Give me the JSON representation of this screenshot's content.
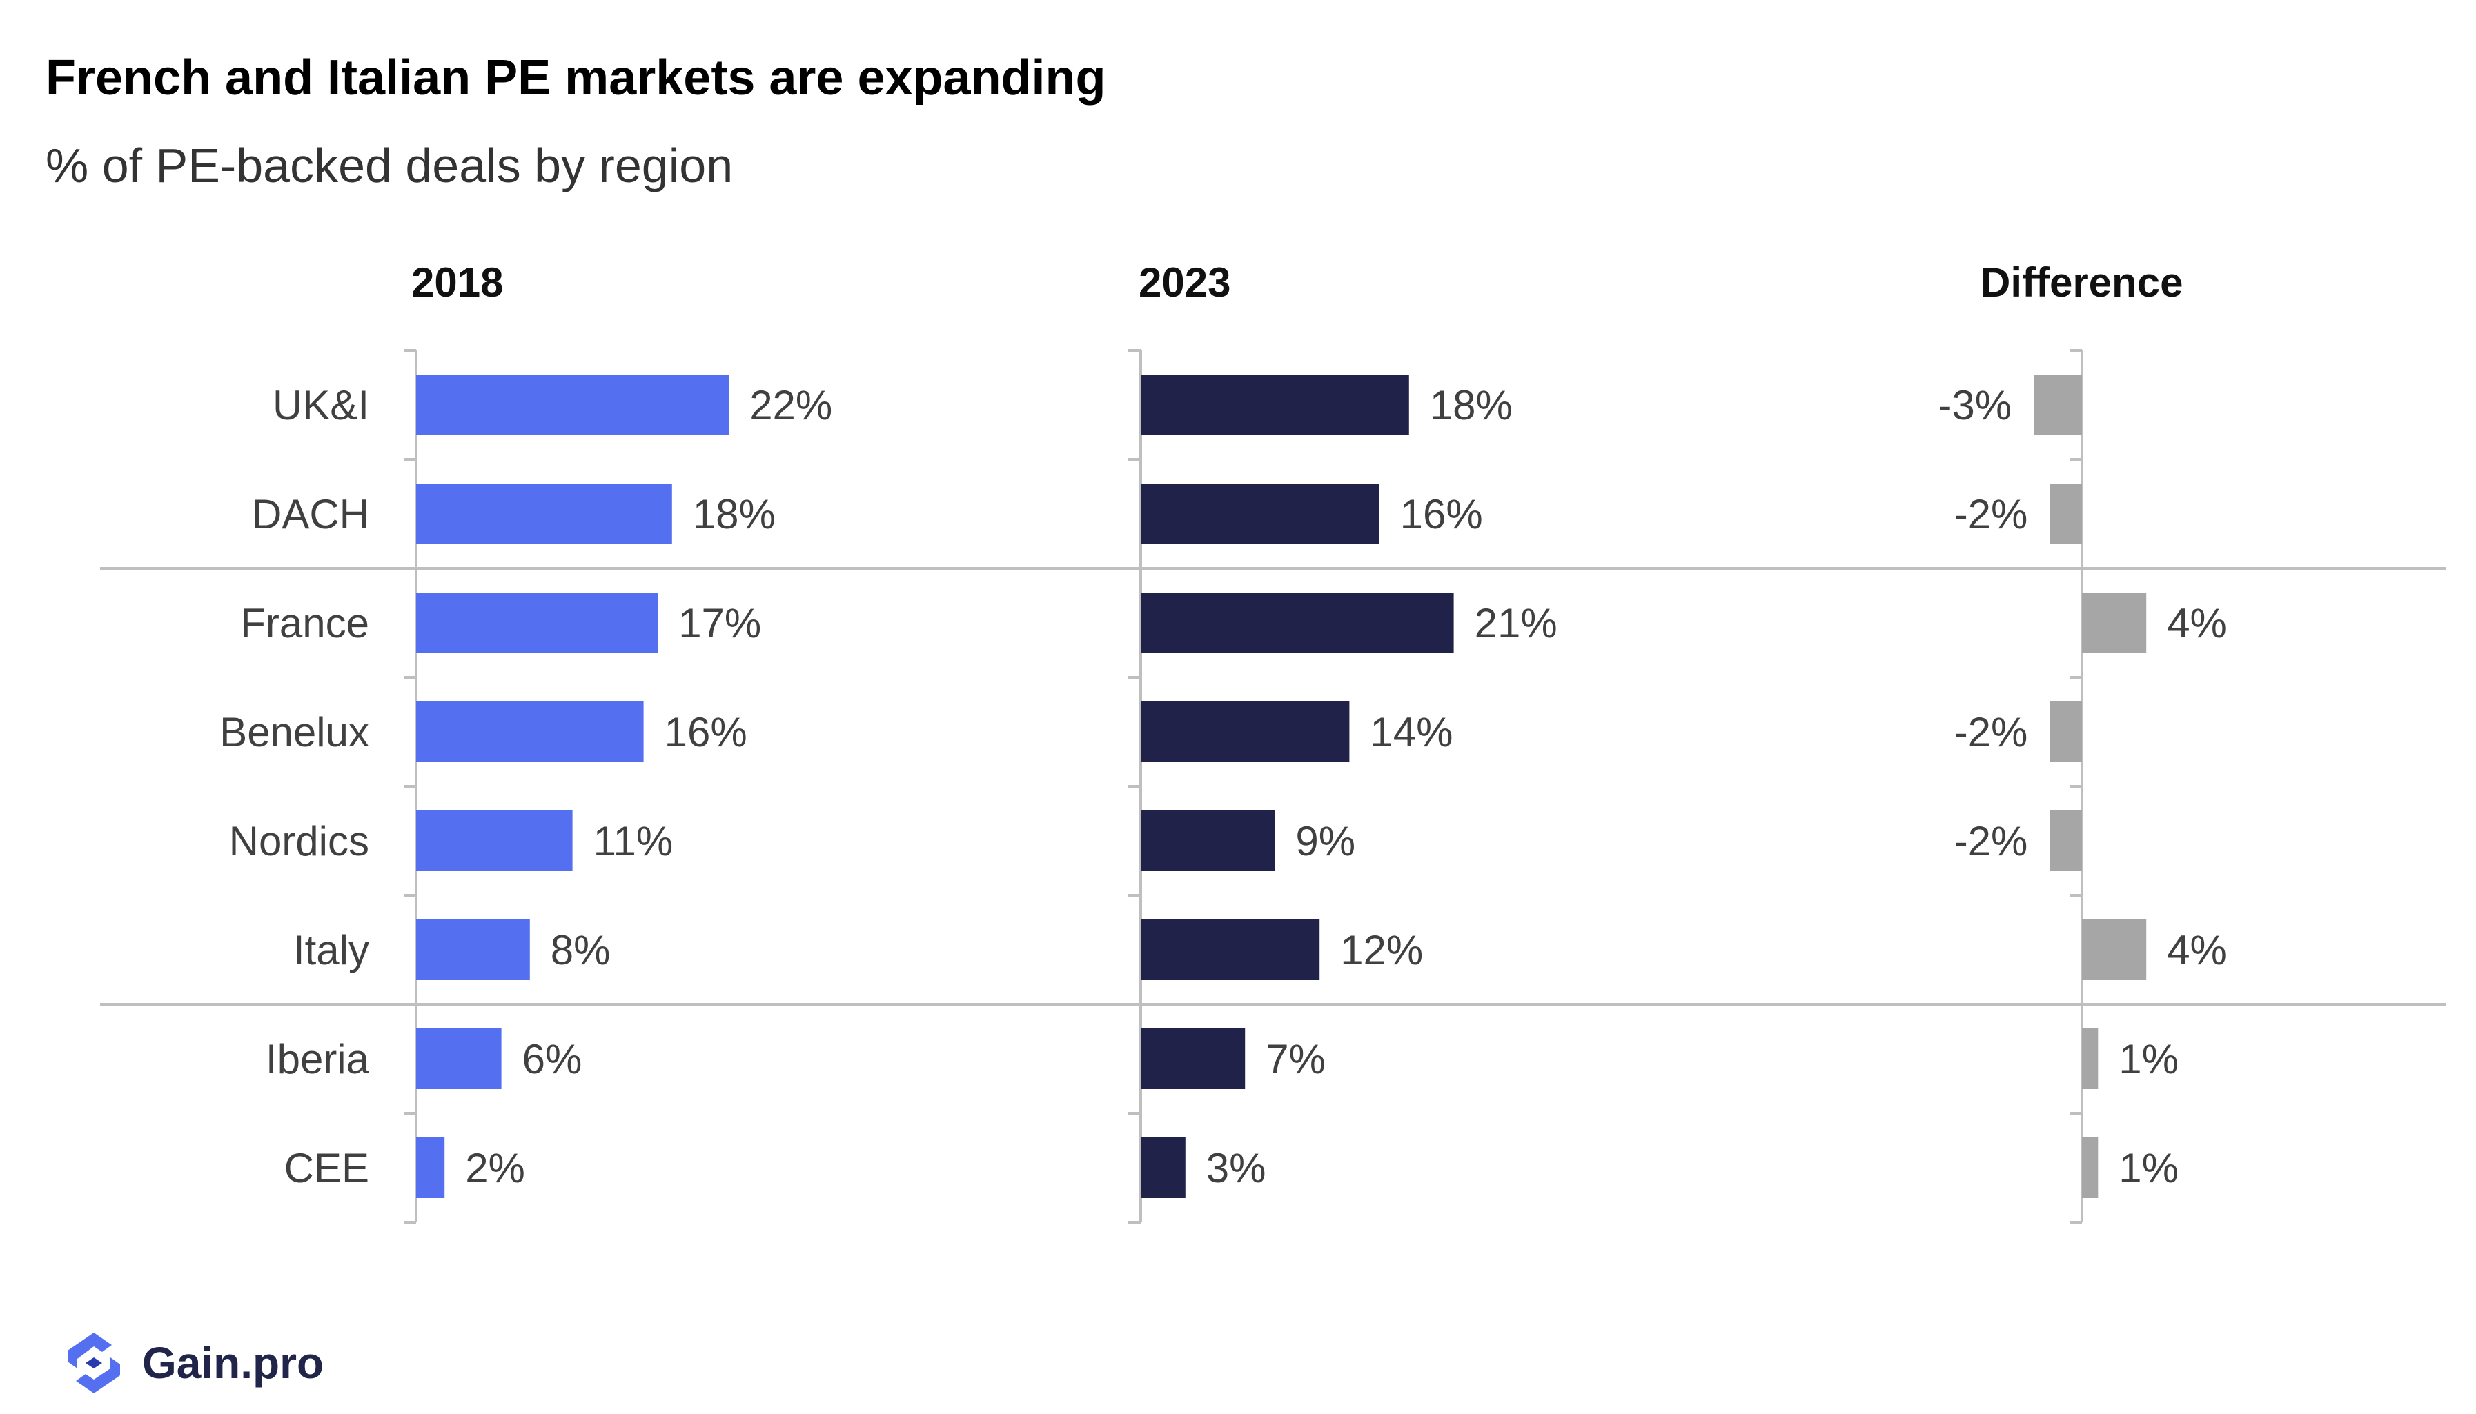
{
  "header": {
    "title": "French and Italian PE markets are expanding",
    "subtitle": "% of PE-backed deals by region"
  },
  "brand": {
    "name": "Gain.pro"
  },
  "colors": {
    "bar_2018": "#5470f0",
    "bar_2023": "#21224a",
    "bar_diff": "#a6a6a6",
    "axis": "#bfbfbf",
    "text": "#404040"
  },
  "chart_data": {
    "type": "bar",
    "orientation": "horizontal",
    "categories": [
      "UK&I",
      "DACH",
      "France",
      "Benelux",
      "Nordics",
      "Italy",
      "Iberia",
      "CEE"
    ],
    "series": [
      {
        "name": "2018",
        "values": [
          22,
          18,
          17,
          16,
          11,
          8,
          6,
          2
        ],
        "labels": [
          "22%",
          "18%",
          "17%",
          "16%",
          "11%",
          "8%",
          "6%",
          "2%"
        ]
      },
      {
        "name": "2023",
        "values": [
          18,
          16,
          21,
          14,
          9,
          12,
          7,
          3
        ],
        "labels": [
          "18%",
          "16%",
          "21%",
          "14%",
          "9%",
          "12%",
          "7%",
          "3%"
        ]
      },
      {
        "name": "Difference",
        "values": [
          -3,
          -2,
          4,
          -2,
          -2,
          4,
          1,
          1
        ],
        "labels": [
          "-3%",
          "-2%",
          "4%",
          "-2%",
          "-2%",
          "4%",
          "1%",
          "1%"
        ]
      }
    ],
    "group_separators_after": [
      "DACH",
      "Italy"
    ],
    "title": "French and Italian PE markets are expanding",
    "subtitle": "% of PE-backed deals by region",
    "unit": "%"
  }
}
